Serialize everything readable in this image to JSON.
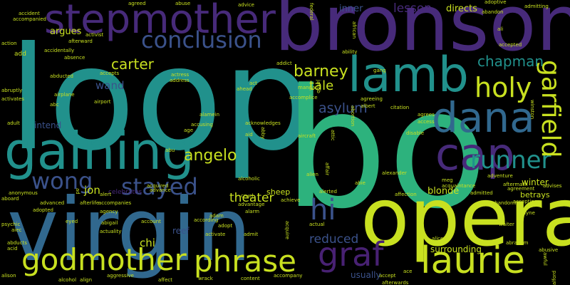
{
  "palette": {
    "purple": "#472a7a",
    "indigo": "#3b528b",
    "blue": "#31688e",
    "teal": "#21918c",
    "green": "#2db27d",
    "lime": "#5ec962",
    "yellow": "#c8e020",
    "dark": "#482173"
  },
  "words": [
    {
      "text": "loop"
    },
    {
      "text": "bo"
    },
    {
      "text": "bronson"
    },
    {
      "text": "virgin"
    },
    {
      "text": "opera"
    },
    {
      "text": "stepmother"
    },
    {
      "text": "gaining"
    },
    {
      "text": "lamb"
    },
    {
      "text": "dana"
    },
    {
      "text": "cap"
    },
    {
      "text": "laurie"
    },
    {
      "text": "godmother"
    },
    {
      "text": "phrase"
    },
    {
      "text": "graf"
    },
    {
      "text": "hi"
    },
    {
      "text": "conclusion"
    },
    {
      "text": "runner"
    },
    {
      "text": "holy"
    },
    {
      "text": "garfield"
    },
    {
      "text": "stayed"
    },
    {
      "text": "wong"
    },
    {
      "text": "angelo"
    },
    {
      "text": "chapman"
    },
    {
      "text": "barney"
    },
    {
      "text": "carter"
    },
    {
      "text": "tale"
    },
    {
      "text": "asylum"
    },
    {
      "text": "lesson"
    },
    {
      "text": "theater"
    },
    {
      "text": "reduced"
    },
    {
      "text": "jon"
    },
    {
      "text": "chi"
    },
    {
      "text": "wand"
    },
    {
      "text": "argues"
    },
    {
      "text": "inner"
    },
    {
      "text": "directs"
    },
    {
      "text": "blonde"
    },
    {
      "text": "winter"
    },
    {
      "text": "surrounding"
    },
    {
      "text": "reef"
    },
    {
      "text": "intend"
    },
    {
      "text": "usually"
    },
    {
      "text": "sheep"
    },
    {
      "text": "betrays"
    },
    {
      "text": "celebrates"
    },
    {
      "text": "adoptive"
    },
    {
      "text": "admitting"
    },
    {
      "text": "advice"
    },
    {
      "text": "agreed"
    },
    {
      "text": "abuse"
    },
    {
      "text": "accident"
    },
    {
      "text": "accompanied"
    },
    {
      "text": "action"
    },
    {
      "text": "add"
    },
    {
      "text": "abducted"
    },
    {
      "text": "absence"
    },
    {
      "text": "accepts"
    },
    {
      "text": "activist"
    },
    {
      "text": "afterward"
    },
    {
      "text": "airplane"
    },
    {
      "text": "airport"
    },
    {
      "text": "actress"
    },
    {
      "text": "address"
    },
    {
      "text": "abruptly"
    },
    {
      "text": "activates"
    },
    {
      "text": "adult"
    },
    {
      "text": "age"
    },
    {
      "text": "aid"
    },
    {
      "text": "acknowledges"
    },
    {
      "text": "accusing"
    },
    {
      "text": "acquired"
    },
    {
      "text": "advance"
    },
    {
      "text": "agency"
    },
    {
      "text": "actuality"
    },
    {
      "text": "account"
    },
    {
      "text": "abigail"
    },
    {
      "text": "afterlife"
    },
    {
      "text": "accompanies"
    },
    {
      "text": "advanced"
    },
    {
      "text": "adopted"
    },
    {
      "text": "aiec"
    },
    {
      "text": "psychic"
    },
    {
      "text": "abducts"
    },
    {
      "text": "acid"
    },
    {
      "text": "alison"
    },
    {
      "text": "alcohol"
    },
    {
      "text": "align"
    },
    {
      "text": "aggressive"
    },
    {
      "text": "affect"
    },
    {
      "text": "wrack"
    },
    {
      "text": "content"
    },
    {
      "text": "accompany"
    },
    {
      "text": "accept"
    },
    {
      "text": "ace"
    },
    {
      "text": "afterwards"
    },
    {
      "text": "alice"
    },
    {
      "text": "abraham"
    },
    {
      "text": "waiter"
    },
    {
      "text": "wayne"
    },
    {
      "text": "abusive"
    },
    {
      "text": "alford"
    },
    {
      "text": "accepting"
    },
    {
      "text": "agreement"
    },
    {
      "text": "advises"
    },
    {
      "text": "abandoning"
    },
    {
      "text": "adventure"
    },
    {
      "text": "aftermath"
    },
    {
      "text": "admitted"
    },
    {
      "text": "affection"
    },
    {
      "text": "alerted"
    },
    {
      "text": "abie"
    },
    {
      "text": "achieve"
    },
    {
      "text": "advantage"
    },
    {
      "text": "alarm"
    },
    {
      "text": "adopt"
    },
    {
      "text": "activate"
    },
    {
      "text": "admit"
    },
    {
      "text": "acquire"
    },
    {
      "text": "according"
    },
    {
      "text": "adam"
    },
    {
      "text": "alert"
    },
    {
      "text": "eyed"
    },
    {
      "text": "anonymous"
    },
    {
      "text": "aboard"
    },
    {
      "text": "ad"
    },
    {
      "text": "alexander"
    },
    {
      "text": "alien"
    },
    {
      "text": "disable"
    },
    {
      "text": "access"
    },
    {
      "text": "citation"
    },
    {
      "text": "abortion"
    },
    {
      "text": "agreeing"
    },
    {
      "text": "accomplice"
    },
    {
      "text": "addict"
    },
    {
      "text": "accidentally"
    },
    {
      "text": "abandon"
    },
    {
      "text": "african"
    },
    {
      "text": "federal"
    },
    {
      "text": "ability"
    },
    {
      "text": "winston"
    },
    {
      "text": "acquaintance"
    },
    {
      "text": "agrees"
    },
    {
      "text": "ahead"
    },
    {
      "text": "act"
    },
    {
      "text": "alamein"
    },
    {
      "text": "abby"
    },
    {
      "text": "aircraft"
    },
    {
      "text": "actual"
    },
    {
      "text": "cruel"
    },
    {
      "text": "accepted"
    },
    {
      "text": "ali"
    },
    {
      "text": "abc"
    },
    {
      "text": "meg"
    },
    {
      "text": "attic"
    },
    {
      "text": "affair"
    },
    {
      "text": "albert"
    },
    {
      "text": "jacob"
    },
    {
      "text": "manga"
    },
    {
      "text": "gang"
    },
    {
      "text": "alcoholic"
    },
    {
      "text": "abu"
    },
    {
      "text": "awful"
    }
  ]
}
